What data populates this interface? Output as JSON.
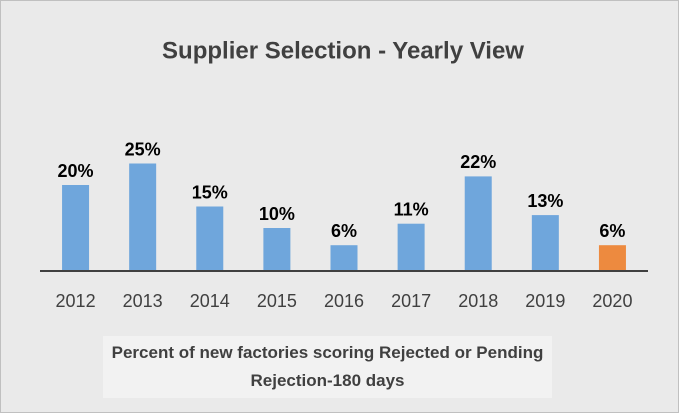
{
  "chart_data": {
    "type": "bar",
    "title": "Supplier Selection - Yearly View",
    "categories": [
      "2012",
      "2013",
      "2014",
      "2015",
      "2016",
      "2017",
      "2018",
      "2019",
      "2020"
    ],
    "values": [
      20,
      25,
      15,
      10,
      6,
      11,
      22,
      13,
      6
    ],
    "value_labels": [
      "20%",
      "25%",
      "15%",
      "10%",
      "6%",
      "11%",
      "22%",
      "13%",
      "6%"
    ],
    "colors": [
      "#6fa6dc",
      "#6fa6dc",
      "#6fa6dc",
      "#6fa6dc",
      "#6fa6dc",
      "#6fa6dc",
      "#6fa6dc",
      "#6fa6dc",
      "#ed8a3f"
    ],
    "x_axis_label": "Percent of new factories scoring Rejected or Pending Rejection-180 days"
  }
}
